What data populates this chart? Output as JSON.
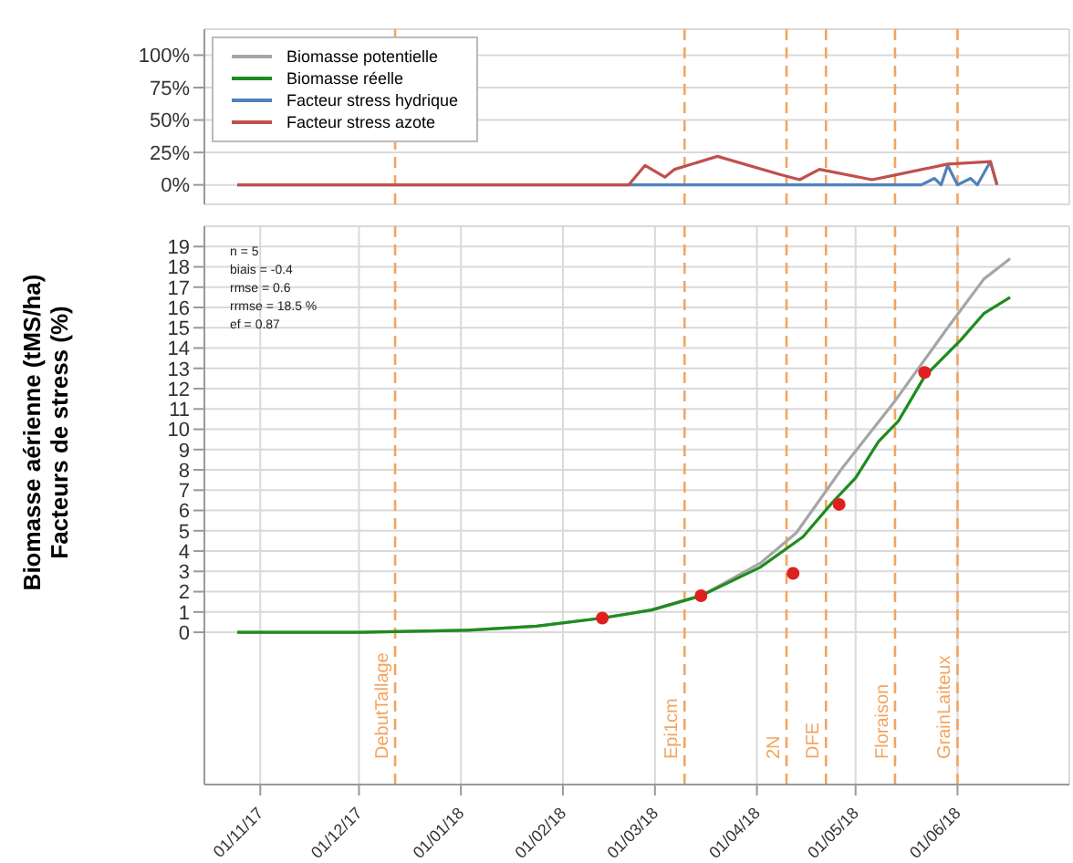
{
  "chart_data": [
    {
      "type": "line",
      "xlim": [
        "2017-10-15",
        "2018-07-05"
      ],
      "xticks": [
        "2017-11-01",
        "2017-12-01",
        "2018-01-01",
        "2018-02-01",
        "2018-03-01",
        "2018-04-01",
        "2018-05-01",
        "2018-06-01"
      ],
      "ylim": [
        -15,
        120
      ],
      "yticks": [
        {
          "value": 0,
          "label": "0%"
        },
        {
          "value": 25,
          "label": "25%"
        },
        {
          "value": 50,
          "label": "50%"
        },
        {
          "value": 75,
          "label": "75%"
        },
        {
          "value": 100,
          "label": "100%"
        }
      ],
      "tick_labels": "y",
      "grid": true,
      "legend": "top left",
      "series": [
        {
          "name": "Facteur stress hydrique",
          "color": "#4f81bd",
          "x": [
            "2017-10-25",
            "2018-05-21",
            "2018-05-25",
            "2018-05-27",
            "2018-05-29",
            "2018-06-01",
            "2018-06-05",
            "2018-06-07",
            "2018-06-11",
            "2018-06-13"
          ],
          "values": [
            0,
            0,
            5,
            0,
            15,
            0,
            5,
            0,
            18,
            0
          ]
        },
        {
          "name": "Facteur stress azote",
          "color": "#c0504d",
          "x": [
            "2017-10-25",
            "2018-02-21",
            "2018-02-26",
            "2018-03-04",
            "2018-03-07",
            "2018-03-20",
            "2018-04-08",
            "2018-04-14",
            "2018-04-20",
            "2018-05-06",
            "2018-05-10",
            "2018-05-29",
            "2018-06-11",
            "2018-06-13"
          ],
          "values": [
            0,
            0,
            15,
            6,
            12,
            22,
            8,
            4,
            12,
            4,
            6,
            16,
            18,
            0
          ]
        }
      ],
      "ref_lines": [
        {
          "axis": "x",
          "value": "2017-12-12",
          "color": "#f4a460",
          "line_style": "dashed"
        },
        {
          "axis": "x",
          "value": "2018-03-10",
          "color": "#f4a460",
          "line_style": "dashed"
        },
        {
          "axis": "x",
          "value": "2018-04-10",
          "color": "#f4a460",
          "line_style": "dashed"
        },
        {
          "axis": "x",
          "value": "2018-04-22",
          "color": "#f4a460",
          "line_style": "dashed"
        },
        {
          "axis": "x",
          "value": "2018-05-13",
          "color": "#f4a460",
          "line_style": "dashed"
        },
        {
          "axis": "x",
          "value": "2018-06-01",
          "color": "#f4a460",
          "line_style": "dashed"
        }
      ]
    },
    {
      "type": "line",
      "ylabel": "Biomasse aérienne (tMS/ha)\nFacteurs de stress (%)",
      "xlim": [
        "2017-10-15",
        "2018-07-05"
      ],
      "xticks": [
        {
          "value": "2017-11-01",
          "label": "01/11/17"
        },
        {
          "value": "2017-12-01",
          "label": "01/12/17"
        },
        {
          "value": "2018-01-01",
          "label": "01/01/18"
        },
        {
          "value": "2018-02-01",
          "label": "01/02/18"
        },
        {
          "value": "2018-03-01",
          "label": "01/03/18"
        },
        {
          "value": "2018-04-01",
          "label": "01/04/18"
        },
        {
          "value": "2018-05-01",
          "label": "01/05/18"
        },
        {
          "value": "2018-06-01",
          "label": "01/06/18"
        }
      ],
      "ylim": [
        -7.5,
        20
      ],
      "yticks": [
        0,
        1,
        2,
        3,
        4,
        5,
        6,
        7,
        8,
        9,
        10,
        11,
        12,
        13,
        14,
        15,
        16,
        17,
        18,
        19
      ],
      "grid": true,
      "legend": "top",
      "annotations": [
        "n = 5",
        "biais = -0.4",
        "rmse = 0.6",
        "rrmse = 18.5 %",
        "ef = 0.87"
      ],
      "series": [
        {
          "name": "Biomasse potentielle",
          "color": "#a6a6a6",
          "x": [
            "2017-10-25",
            "2017-12-01",
            "2018-01-03",
            "2018-01-24",
            "2018-02-13",
            "2018-02-28",
            "2018-03-15",
            "2018-04-02",
            "2018-04-13",
            "2018-04-27",
            "2018-05-13",
            "2018-05-29",
            "2018-06-09",
            "2018-06-17"
          ],
          "values": [
            0,
            0,
            0.1,
            0.3,
            0.7,
            1.1,
            1.8,
            3.4,
            4.9,
            8.1,
            11.4,
            15,
            17.4,
            18.4
          ]
        },
        {
          "name": "Biomasse réelle",
          "color": "#1e8c1e",
          "x": [
            "2017-10-25",
            "2017-12-01",
            "2018-01-03",
            "2018-01-24",
            "2018-02-13",
            "2018-02-28",
            "2018-03-15",
            "2018-04-02",
            "2018-04-15",
            "2018-04-24",
            "2018-05-01",
            "2018-05-08",
            "2018-05-14",
            "2018-05-22",
            "2018-06-02",
            "2018-06-09",
            "2018-06-17"
          ],
          "values": [
            0,
            0,
            0.1,
            0.3,
            0.7,
            1.1,
            1.8,
            3.2,
            4.7,
            6.4,
            7.6,
            9.4,
            10.4,
            12.6,
            14.4,
            15.7,
            16.5
          ]
        },
        {
          "type": "scatter",
          "marker": "circle",
          "color": "#e02020",
          "x": [
            "2018-02-13",
            "2018-03-15",
            "2018-04-12",
            "2018-04-26",
            "2018-05-22"
          ],
          "values": [
            0.7,
            1.8,
            2.9,
            6.3,
            12.8
          ]
        }
      ],
      "ref_lines": [
        {
          "axis": "x",
          "value": "2017-12-12",
          "label": "DebutTallage",
          "color": "#f4a460",
          "line_style": "dashed"
        },
        {
          "axis": "x",
          "value": "2018-03-10",
          "label": "Epi1cm",
          "color": "#f4a460",
          "line_style": "dashed"
        },
        {
          "axis": "x",
          "value": "2018-04-10",
          "label": "2N",
          "color": "#f4a460",
          "line_style": "dashed"
        },
        {
          "axis": "x",
          "value": "2018-04-22",
          "label": "DFE",
          "color": "#f4a460",
          "line_style": "dashed"
        },
        {
          "axis": "x",
          "value": "2018-05-13",
          "label": "Floraison",
          "color": "#f4a460",
          "line_style": "dashed"
        },
        {
          "axis": "x",
          "value": "2018-06-01",
          "label": "GrainLaiteux",
          "color": "#f4a460",
          "line_style": "dashed"
        }
      ]
    }
  ]
}
